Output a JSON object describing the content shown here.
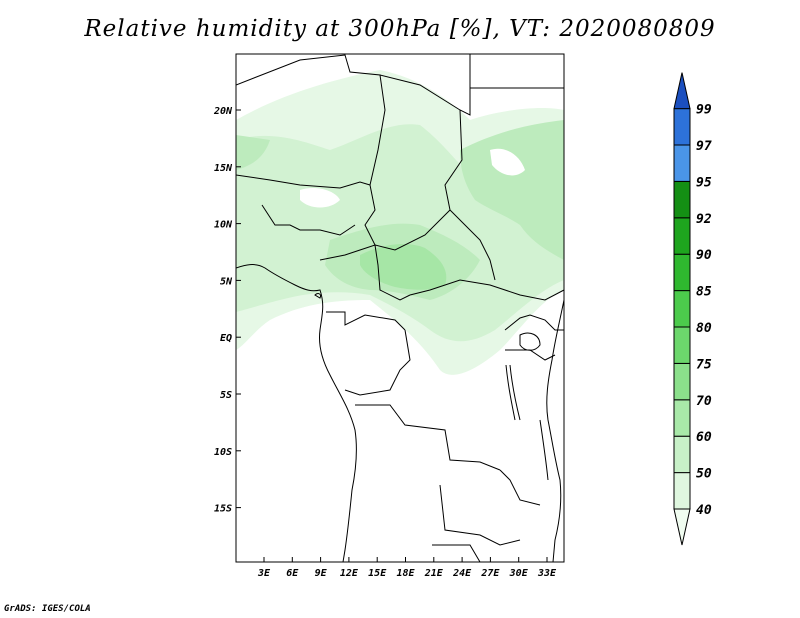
{
  "title": "Relative humidity at 300hPa [%], VT: 2020080809",
  "credit": "GrADS: IGES/COLA",
  "lon_ticks": [
    "3E",
    "6E",
    "9E",
    "12E",
    "15E",
    "18E",
    "21E",
    "24E",
    "27E",
    "30E",
    "33E"
  ],
  "lat_ticks": [
    "20N",
    "15N",
    "10N",
    "5N",
    "EQ",
    "5S",
    "10S",
    "15S"
  ],
  "colorbar": {
    "labels": [
      "40",
      "50",
      "60",
      "70",
      "75",
      "80",
      "85",
      "90",
      "92",
      "95",
      "97",
      "99"
    ],
    "colors": [
      "#f0fcf0",
      "#dff7df",
      "#c8f1c8",
      "#a9e9a9",
      "#8be08b",
      "#6cd76c",
      "#4ccb4c",
      "#2fb82f",
      "#1ea51e",
      "#148f14",
      "#4a95e8",
      "#2d72d9",
      "#1b4fbf"
    ]
  },
  "chart_data": {
    "type": "heatmap",
    "title": "Relative humidity at 300hPa [%], VT: 2020080809",
    "variable": "Relative humidity",
    "level": "300hPa",
    "units": "%",
    "valid_time": "2020080809",
    "contour_levels": [
      40,
      50,
      60,
      70,
      75,
      80,
      85,
      90,
      92,
      95,
      97,
      99
    ],
    "lon_range": [
      0,
      35
    ],
    "lat_range": [
      -20,
      25
    ]
  }
}
